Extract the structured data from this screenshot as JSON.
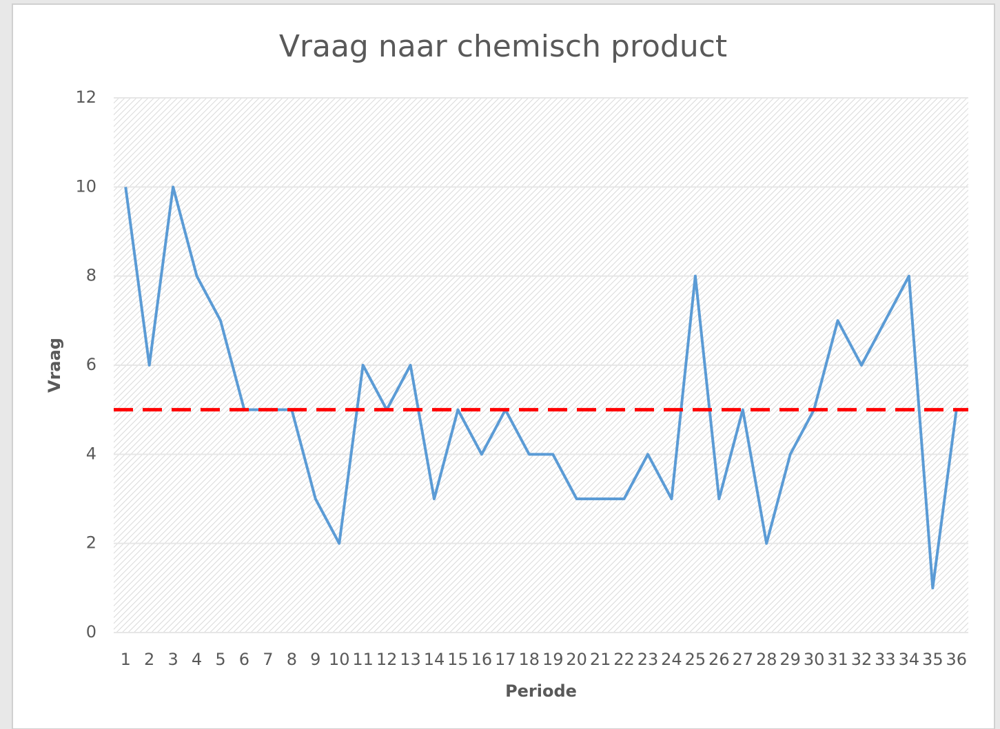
{
  "chart_data": {
    "type": "line",
    "title": "Vraag naar chemisch product",
    "x_label": "Periode",
    "y_label": "Vraag",
    "categories": [
      "1",
      "2",
      "3",
      "4",
      "5",
      "6",
      "7",
      "8",
      "9",
      "10",
      "11",
      "12",
      "13",
      "14",
      "15",
      "16",
      "17",
      "18",
      "19",
      "20",
      "21",
      "22",
      "23",
      "24",
      "25",
      "26",
      "27",
      "28",
      "29",
      "30",
      "31",
      "32",
      "33",
      "34",
      "35",
      "36"
    ],
    "series": [
      {
        "color": "#5b9bd5",
        "values": [
          10,
          6,
          10,
          8,
          7,
          5,
          5,
          5,
          3,
          2,
          6,
          5,
          6,
          3,
          5,
          4,
          5,
          4,
          4,
          3,
          3,
          3,
          4,
          3,
          8,
          3,
          5,
          2,
          4,
          5,
          7,
          6,
          7,
          8,
          1,
          5
        ]
      }
    ],
    "reference_line": {
      "value": 5,
      "color": "#ff0000",
      "style": "dashed"
    },
    "ylim": [
      0,
      12
    ],
    "yticks": [
      0,
      2,
      4,
      6,
      8,
      10,
      12
    ],
    "grid": true
  }
}
